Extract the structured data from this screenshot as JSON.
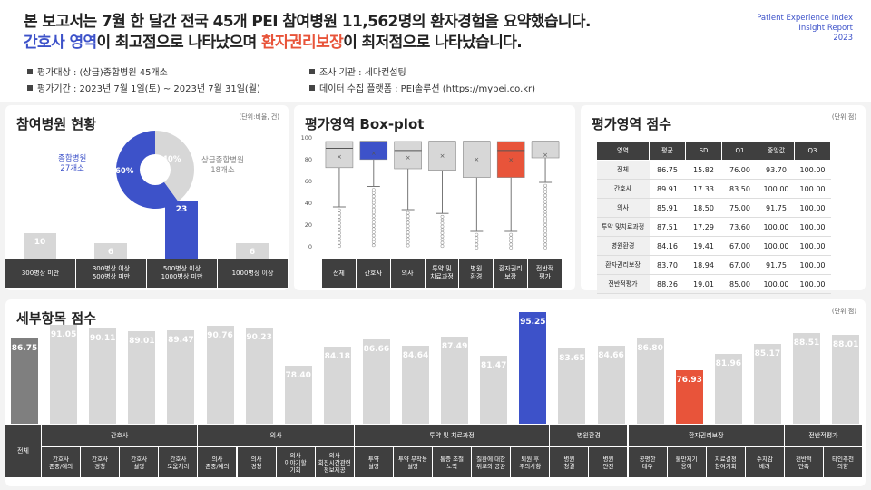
{
  "header": {
    "line1": "본 보고서는 7월 한 달간 전국 45개 PEI 참여병원 11,562명의 환자경험을 요약했습니다.",
    "line2_a": "간호사 영역",
    "line2_b": "이 최고점으로 나타났으며 ",
    "line2_c": "환자권리보장",
    "line2_d": "이 최저점으로 나타났습니다.",
    "brand1": "Patient Experience Index",
    "brand2": "Insight Report",
    "brand3": "2023",
    "info_target": "평가대상 : (상급)종합병원 45개소",
    "info_period": "평가기간 : 2023년 7월 1일(토) ~ 2023년 7월 31일(월)",
    "info_agency": "조사 기관 : 세마컨설팅",
    "info_platform": "데이터 수집 플랫폼 : PEI솔루션 (https://mypei.co.kr)"
  },
  "hospitals": {
    "title": "참여병원 현황",
    "unit": "(단위:비율, 건)",
    "pie_left_label": "종합병원\n27개소",
    "pie_right_label": "상급종합병원\n18개소",
    "pie_left_pct": "60%",
    "pie_right_pct": "40%",
    "bar_colors": [
      "#d7d7d7",
      "#d7d7d7",
      "#3d52c9",
      "#d7d7d7"
    ]
  },
  "boxplot": {
    "title": "평가영역 Box-plot",
    "axis": [
      "100",
      "80",
      "60",
      "40",
      "20",
      "0"
    ],
    "colors": [
      "#d7d7d7",
      "#3d52c9",
      "#d7d7d7",
      "#d7d7d7",
      "#d7d7d7",
      "#e8543a",
      "#d7d7d7"
    ]
  },
  "scores": {
    "title": "평가영역 점수",
    "unit": "(단위:점)",
    "columns": [
      "영역",
      "평균",
      "SD",
      "Q1",
      "중앙값",
      "Q3"
    ],
    "rows": [
      [
        "전체",
        "86.75",
        "15.82",
        "76.00",
        "93.70",
        "100.00"
      ],
      [
        "간호사",
        "89.91",
        "17.33",
        "83.50",
        "100.00",
        "100.00"
      ],
      [
        "의사",
        "85.91",
        "18.50",
        "75.00",
        "91.75",
        "100.00"
      ],
      [
        "투약 및치료과정",
        "87.51",
        "17.29",
        "73.60",
        "100.00",
        "100.00"
      ],
      [
        "병원환경",
        "84.16",
        "19.41",
        "67.00",
        "100.00",
        "100.00"
      ],
      [
        "환자권리보장",
        "83.70",
        "18.94",
        "67.00",
        "91.75",
        "100.00"
      ],
      [
        "전반적평가",
        "88.26",
        "19.01",
        "85.00",
        "100.00",
        "100.00"
      ]
    ]
  },
  "details": {
    "title": "세부항목 점수",
    "unit": "(단위:점)",
    "total_label": "전체"
  },
  "chart_data": [
    {
      "type": "pie",
      "categories": [
        "종합병원",
        "상급종합병원"
      ],
      "values": [
        60,
        40
      ],
      "counts": [
        27,
        18
      ]
    },
    {
      "type": "bar",
      "categories": [
        "300병상 미만",
        "300병상 이상\n500병상 미만",
        "500병상 이상\n1000병상 미만",
        "1000병상 이상"
      ],
      "values": [
        10,
        6,
        23,
        6
      ]
    },
    {
      "type": "box",
      "categories": [
        "전체",
        "간호사",
        "의사",
        "투약 및\n치료과정",
        "병원\n환경",
        "환자권리\n보장",
        "전반적\n평가"
      ],
      "q1": [
        76.0,
        83.5,
        75.0,
        73.6,
        67.0,
        67.0,
        85.0
      ],
      "median": [
        93.7,
        100,
        91.75,
        100,
        100,
        91.75,
        100
      ],
      "q3": [
        100,
        100,
        100,
        100,
        100,
        100,
        100
      ],
      "mean": [
        86.75,
        89.91,
        85.91,
        87.51,
        84.16,
        83.7,
        88.26
      ],
      "ylim": [
        0,
        100
      ]
    },
    {
      "type": "bar",
      "groups": [
        {
          "name": "간호사",
          "items": [
            "간호사\n존중/예의",
            "간호사\n경청",
            "간호사\n설명",
            "간호사\n도움처리"
          ]
        },
        {
          "name": "의사",
          "items": [
            "의사\n존중/예의",
            "의사\n경청",
            "의사\n이야기할\n기회",
            "의사\n회진시간관련\n정보제공"
          ]
        },
        {
          "name": "투약 및 치료과정",
          "items": [
            "투약\n설명",
            "투약 부작용\n설명",
            "통증 조절\n노력",
            "질환에 대한\n위로와 공감",
            "퇴원 후\n주의사항"
          ]
        },
        {
          "name": "병원환경",
          "items": [
            "병원\n청결",
            "병원\n안전"
          ]
        },
        {
          "name": "환자권리보장",
          "items": [
            "공평한\n대우",
            "불만제기\n용이",
            "치료결정\n참여기회",
            "수치감\n배려"
          ]
        },
        {
          "name": "전반적평가",
          "items": [
            "전반적\n만족",
            "타인추천\n의향"
          ]
        }
      ],
      "values": [
        86.75,
        91.05,
        90.11,
        89.01,
        89.47,
        90.76,
        90.23,
        78.4,
        84.18,
        86.66,
        84.64,
        87.49,
        81.47,
        95.25,
        83.65,
        84.66,
        86.8,
        76.93,
        81.96,
        85.17,
        88.51,
        88.01
      ],
      "colors": [
        "#7f7f7f",
        "#d7d7d7",
        "#d7d7d7",
        "#d7d7d7",
        "#d7d7d7",
        "#d7d7d7",
        "#d7d7d7",
        "#d7d7d7",
        "#d7d7d7",
        "#d7d7d7",
        "#d7d7d7",
        "#d7d7d7",
        "#d7d7d7",
        "#3d52c9",
        "#d7d7d7",
        "#d7d7d7",
        "#d7d7d7",
        "#e8543a",
        "#d7d7d7",
        "#d7d7d7",
        "#d7d7d7",
        "#d7d7d7"
      ]
    }
  ]
}
